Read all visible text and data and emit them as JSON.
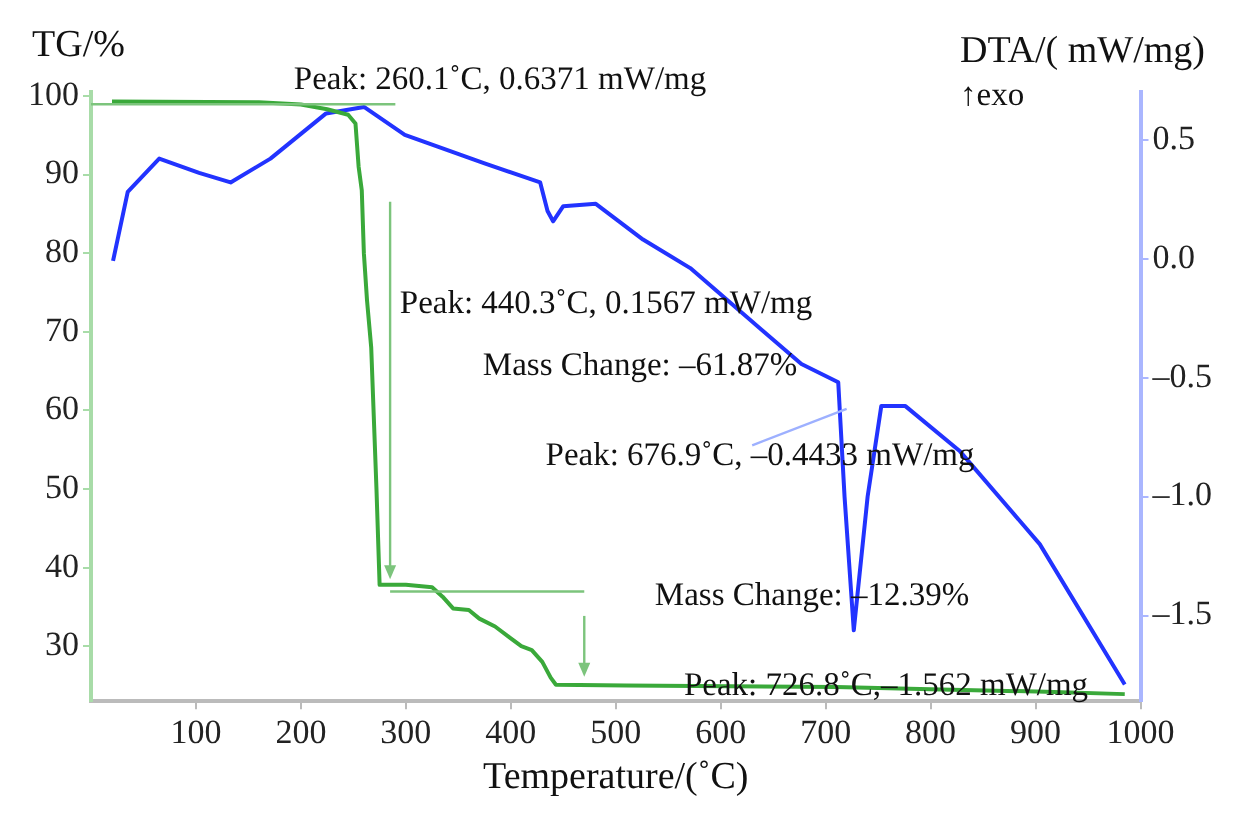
{
  "chart_data": {
    "type": "line",
    "xlabel": "Temperature/(˚C)",
    "ylabel": "TG/%",
    "y2label": "DTA/( mW/mg)",
    "xlim": [
      0,
      1000
    ],
    "xticks": [
      100,
      200,
      300,
      400,
      500,
      600,
      700,
      800,
      900,
      1000
    ],
    "ylim": [
      23,
      100.5
    ],
    "yticks": [
      30,
      40,
      50,
      60,
      70,
      80,
      90,
      100
    ],
    "y2lim": [
      -1.86,
      0.7
    ],
    "y2ticks": [
      {
        "value": -1.5,
        "label": "–1.5"
      },
      {
        "value": -1,
        "label": "–1.0"
      },
      {
        "value": -0.5,
        "label": "–0.5"
      },
      {
        "value": 0,
        "label": "0.0"
      },
      {
        "value": 0.5,
        "label": "0.5"
      }
    ],
    "grid": false,
    "legend": false,
    "marker": "none",
    "line_style": "solid",
    "series": [
      {
        "color": "#3aa93a",
        "x": [
          20,
          160,
          200,
          225,
          245,
          252,
          255,
          258,
          260,
          263,
          267,
          272,
          275,
          300,
          325,
          335,
          345,
          360,
          370,
          385,
          400,
          410,
          420,
          430,
          438,
          443,
          510,
          710,
          810,
          910,
          985
        ],
        "values": [
          99.3,
          99.2,
          98.9,
          98.3,
          97.6,
          96.5,
          91,
          88,
          80,
          74,
          68,
          50,
          37.8,
          37.8,
          37.5,
          36.3,
          34.8,
          34.6,
          33.5,
          32.5,
          31,
          30,
          29.5,
          28,
          26,
          25.1,
          25,
          24.8,
          24.5,
          24.2,
          23.9
        ]
      },
      {
        "color": "#2233ff",
        "axis": "y2",
        "x": [
          21,
          35,
          65,
          103,
          133,
          171,
          224,
          260.1,
          299,
          375,
          428,
          435,
          440.3,
          450,
          481,
          526,
          571,
          676.9,
          712,
          718,
          726.8,
          740,
          753,
          776,
          828,
          904,
          985
        ],
        "values": [
          -0.01,
          0.28,
          0.42,
          0.36,
          0.32,
          0.42,
          0.61,
          0.6371,
          0.52,
          0.4,
          0.32,
          0.2,
          0.1567,
          0.22,
          0.23,
          0.08,
          -0.04,
          -0.4433,
          -0.52,
          -1.0,
          -1.562,
          -1.0,
          -0.62,
          -0.62,
          -0.81,
          -1.2,
          -1.79
        ]
      }
    ],
    "annotations": [
      "Peak: 260.1˚C, 0.6371 mW/mg",
      "Peak: 440.3˚C, 0.1567 mW/mg",
      "Mass Change: –61.87%",
      "Peak: 676.9˚C, –0.4433 mW/mg",
      "Mass Change: –12.39%",
      "Peak: 726.8˚C,–1.562 mW/mg",
      "↑exo"
    ]
  }
}
